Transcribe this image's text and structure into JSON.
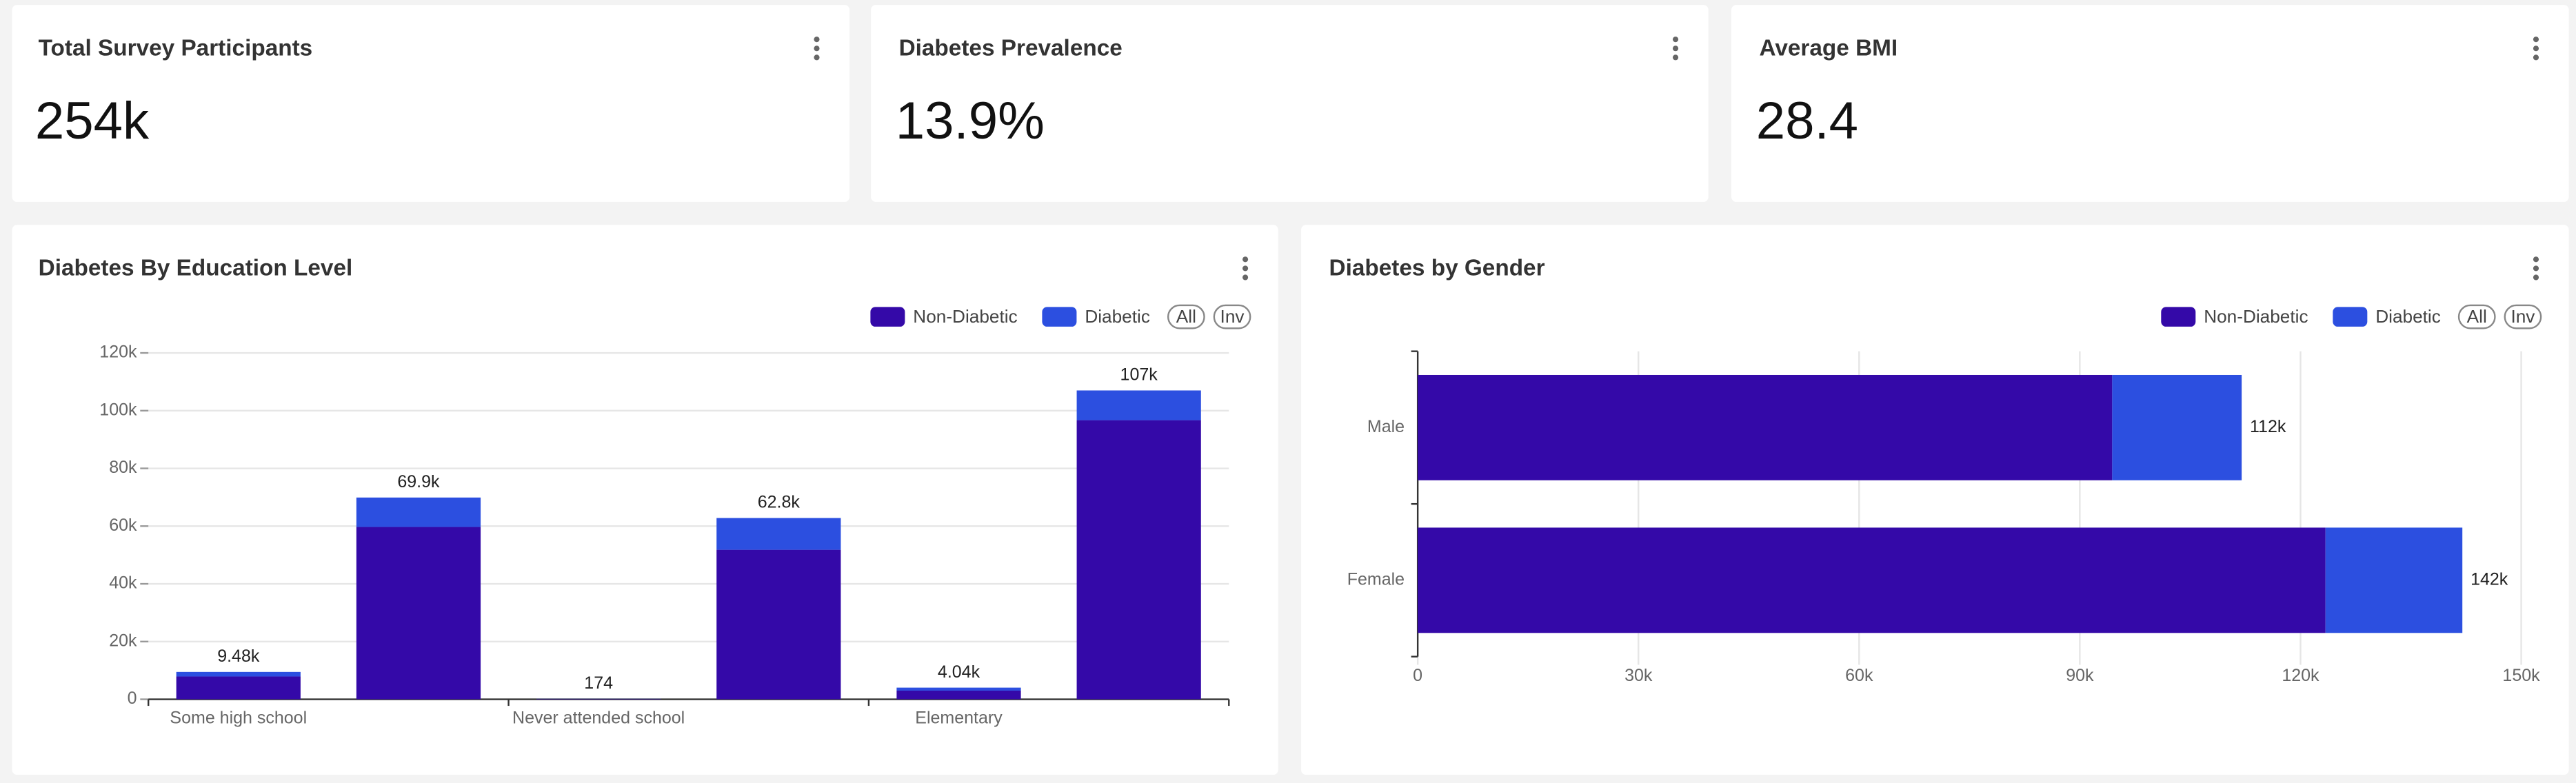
{
  "kpis": [
    {
      "title": "Total Survey Participants",
      "value": "254k"
    },
    {
      "title": "Diabetes Prevalence",
      "value": "13.9%"
    },
    {
      "title": "Average BMI",
      "value": "28.4"
    }
  ],
  "chart_data": [
    {
      "type": "bar",
      "orientation": "vertical",
      "stacked": true,
      "title": "Diabetes By Education Level",
      "categories": [
        "Some high school",
        null,
        "Never attended school",
        null,
        "Elementary",
        null
      ],
      "series": [
        {
          "name": "Non-Diabetic",
          "color": "#3409a8",
          "values": [
            7900,
            59700,
            140,
            51800,
            3000,
            96700
          ]
        },
        {
          "name": "Diabetic",
          "color": "#2c4fe0",
          "values": [
            1580,
            10200,
            34,
            11000,
            1040,
            10300
          ]
        }
      ],
      "total_labels": [
        "9.48k",
        "69.9k",
        "174",
        "62.8k",
        "4.04k",
        "107k"
      ],
      "ylim": [
        0,
        120000
      ],
      "yticks": [
        0,
        {
          "value": 20000,
          "label": "20k"
        },
        {
          "value": 40000,
          "label": "40k"
        },
        {
          "value": 60000,
          "label": "60k"
        },
        {
          "value": 80000,
          "label": "80k"
        },
        {
          "value": 100000,
          "label": "100k"
        },
        {
          "value": 120000,
          "label": "120k"
        }
      ],
      "grid": true,
      "legend_buttons": [
        "All",
        "Inv"
      ]
    },
    {
      "type": "bar",
      "orientation": "horizontal",
      "stacked": true,
      "title": "Diabetes by Gender",
      "categories": [
        "Male",
        "Female"
      ],
      "series": [
        {
          "name": "Non-Diabetic",
          "color": "#3409a8",
          "values": [
            94400,
            123400
          ]
        },
        {
          "name": "Diabetic",
          "color": "#2c4fe0",
          "values": [
            17600,
            18600
          ]
        }
      ],
      "total_labels": [
        "112k",
        "142k"
      ],
      "xlim": [
        0,
        150000
      ],
      "xticks": [
        0,
        {
          "value": 30000,
          "label": "30k"
        },
        {
          "value": 60000,
          "label": "60k"
        },
        {
          "value": 90000,
          "label": "90k"
        },
        {
          "value": 120000,
          "label": "120k"
        },
        {
          "value": 150000,
          "label": "150k"
        }
      ],
      "grid": true,
      "legend_buttons": [
        "All",
        "Inv"
      ]
    }
  ]
}
